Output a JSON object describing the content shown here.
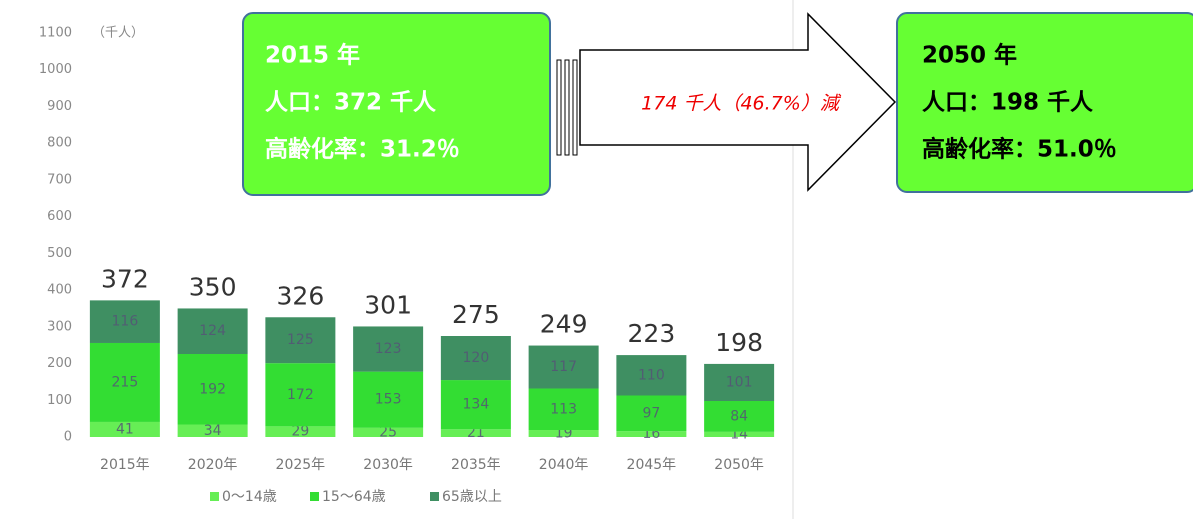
{
  "chart_data": {
    "type": "stacked_bar",
    "unit_label": "（千人）",
    "categories": [
      "2015年",
      "2020年",
      "2025年",
      "2030年",
      "2035年",
      "2040年",
      "2045年",
      "2050年"
    ],
    "series": [
      {
        "name": "0〜14歳",
        "color": "#66ee55",
        "values": [
          41,
          34,
          29,
          25,
          21,
          19,
          16,
          14
        ]
      },
      {
        "name": "15〜64歳",
        "color": "#33dd33",
        "values": [
          215,
          192,
          172,
          153,
          134,
          113,
          97,
          84
        ]
      },
      {
        "name": "65歳以上",
        "color": "#3f8f62",
        "values": [
          116,
          124,
          125,
          123,
          120,
          117,
          110,
          101
        ]
      }
    ],
    "totals": [
      372,
      350,
      326,
      301,
      275,
      249,
      223,
      198
    ],
    "ylim": [
      0,
      1100
    ],
    "yticks": [
      0,
      100,
      200,
      300,
      400,
      500,
      600,
      700,
      800,
      900,
      1000,
      1100
    ],
    "grid": false,
    "annotations": {
      "left_box": [
        "2015 年",
        "人口：372 千人",
        "高齢化率：31.2％"
      ],
      "arrow_text": "174 千人（46.7%）減",
      "right_box": [
        "2050 年",
        "人口：198 千人",
        "高齢化率：51.0％"
      ]
    }
  }
}
